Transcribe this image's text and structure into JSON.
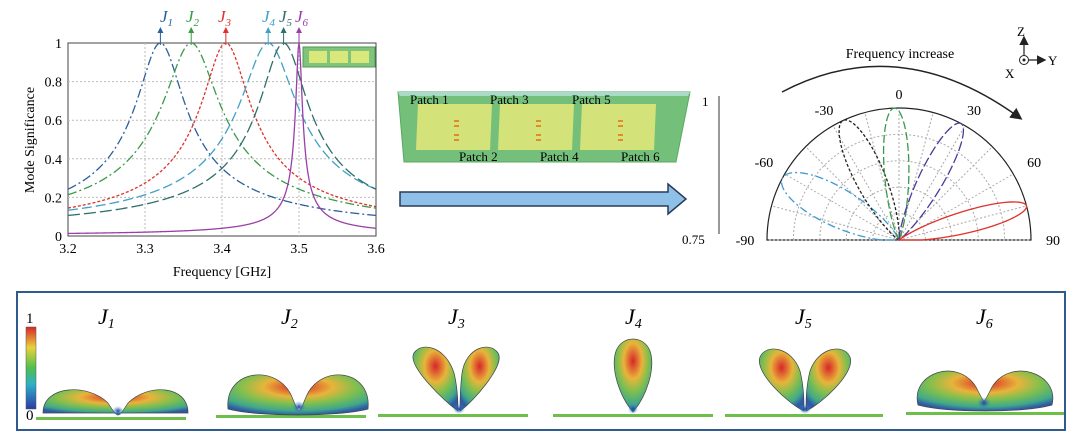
{
  "chart_data": {
    "type": "line",
    "xlabel": "Frequency [GHz]",
    "ylabel": "Mode Significance",
    "xlim": [
      3.2,
      3.6
    ],
    "ylim": [
      0,
      1
    ],
    "x_ticks": [
      "3.2",
      "3.3",
      "3.4",
      "3.5",
      "3.6"
    ],
    "y_ticks": [
      "0",
      "0.2",
      "0.4",
      "0.6",
      "0.8",
      "1"
    ],
    "grid": true,
    "series": [
      {
        "name": "J1",
        "peak": 3.32,
        "width": 0.03,
        "color": "#2a5f9e",
        "dash": "9 3 2 3"
      },
      {
        "name": "J2",
        "peak": 3.36,
        "width": 0.035,
        "color": "#3a9a48",
        "dash": "9 3 2 3"
      },
      {
        "name": "J3",
        "peak": 3.405,
        "width": 0.03,
        "color": "#e0302a",
        "dash": "3 2"
      },
      {
        "name": "J4",
        "peak": 3.46,
        "width": 0.035,
        "color": "#3fa0c8",
        "dash": "10 4"
      },
      {
        "name": "J5",
        "peak": 3.48,
        "width": 0.03,
        "color": "#2f6f6a",
        "dash": "12 4"
      },
      {
        "name": "J6",
        "peak": 3.5,
        "width": 0.004,
        "color": "#9a3fa8",
        "dash": ""
      }
    ]
  },
  "mode_labels": {
    "j1": {
      "base": "J",
      "sub": "1",
      "color": "#2a5f9e"
    },
    "j2": {
      "base": "J",
      "sub": "2",
      "color": "#3a9a48"
    },
    "j3": {
      "base": "J",
      "sub": "3",
      "color": "#e0302a"
    },
    "j4": {
      "base": "J",
      "sub": "4",
      "color": "#3fa0c8"
    },
    "j5": {
      "base": "J",
      "sub": "5",
      "color": "#2f6f6a"
    },
    "j6": {
      "base": "J",
      "sub": "6",
      "color": "#9a3fa8"
    }
  },
  "antenna": {
    "patch_labels": [
      "Patch 1",
      "Patch 2",
      "Patch 3",
      "Patch 4",
      "Patch 5",
      "Patch 6"
    ]
  },
  "polar": {
    "title": "Frequency increase",
    "angle_labels": [
      "-90",
      "-60",
      "-30",
      "0",
      "30",
      "60",
      "90"
    ],
    "r_max_label": "1",
    "r_min_label": "0.75",
    "axes": {
      "z": "Z",
      "y": "Y",
      "x": "X"
    }
  },
  "bottom": {
    "colorbar_max": "1",
    "colorbar_min": "0",
    "modes": [
      {
        "base": "J",
        "sub": "1"
      },
      {
        "base": "J",
        "sub": "2"
      },
      {
        "base": "J",
        "sub": "3"
      },
      {
        "base": "J",
        "sub": "4"
      },
      {
        "base": "J",
        "sub": "5"
      },
      {
        "base": "J",
        "sub": "6"
      }
    ]
  }
}
